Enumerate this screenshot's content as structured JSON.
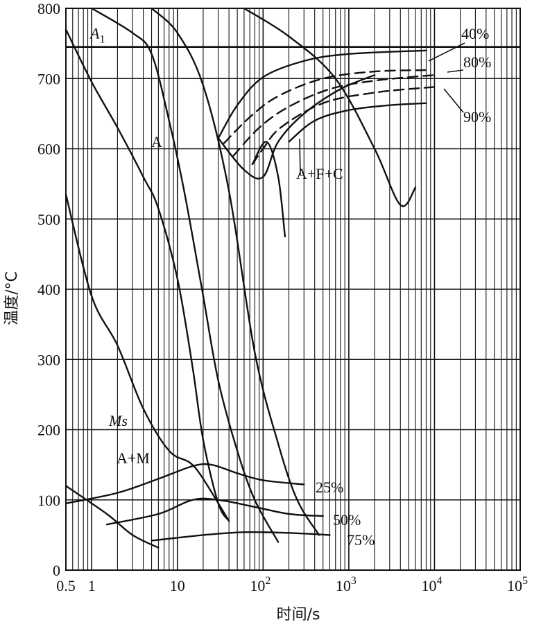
{
  "chart_data": {
    "type": "line",
    "title": "",
    "xlabel": "时间/s",
    "ylabel": "温度/°C",
    "x_scale": "log",
    "xlim": [
      0.5,
      100000
    ],
    "ylim": [
      0,
      800
    ],
    "x_tick_labels": [
      {
        "value": 0.5,
        "text": "0.5"
      },
      {
        "value": 1,
        "text": "1"
      },
      {
        "value": 10,
        "text": "10"
      },
      {
        "value": 100,
        "base": "10",
        "exp": "2"
      },
      {
        "value": 1000,
        "base": "10",
        "exp": "3"
      },
      {
        "value": 10000,
        "base": "10",
        "exp": "4"
      },
      {
        "value": 100000,
        "base": "10",
        "exp": "5"
      }
    ],
    "y_ticks": [
      0,
      100,
      200,
      300,
      400,
      500,
      600,
      700,
      800
    ],
    "grid": true,
    "reference_lines": [
      {
        "label_main": "A",
        "label_sub": "1",
        "y": 745
      }
    ],
    "series": [
      {
        "points": [
          [
            0.5,
            770
          ],
          [
            1,
            695
          ],
          [
            2,
            630
          ],
          [
            4,
            560
          ],
          [
            6,
            515
          ],
          [
            10,
            415
          ],
          [
            15,
            290
          ],
          [
            20,
            185
          ],
          [
            30,
            95
          ],
          [
            40,
            70
          ]
        ]
      },
      {
        "points": [
          [
            1,
            800
          ],
          [
            3,
            765
          ],
          [
            5,
            735
          ],
          [
            8,
            640
          ],
          [
            12,
            540
          ],
          [
            20,
            390
          ],
          [
            30,
            270
          ],
          [
            50,
            170
          ],
          [
            80,
            100
          ],
          [
            150,
            40
          ]
        ]
      },
      {
        "points": [
          [
            5,
            800
          ],
          [
            10,
            765
          ],
          [
            20,
            690
          ],
          [
            40,
            540
          ],
          [
            80,
            310
          ],
          [
            150,
            180
          ],
          [
            250,
            100
          ],
          [
            450,
            50
          ]
        ]
      },
      {
        "points": [
          [
            0.5,
            535
          ],
          [
            1,
            390
          ],
          [
            2,
            320
          ],
          [
            4,
            230
          ],
          [
            8,
            170
          ],
          [
            14,
            153
          ],
          [
            20,
            130
          ],
          [
            40,
            70
          ]
        ]
      },
      {
        "points": [
          [
            60,
            800
          ],
          [
            200,
            760
          ],
          [
            700,
            700
          ],
          [
            2000,
            600
          ],
          [
            4000,
            520
          ],
          [
            6000,
            545
          ]
        ]
      },
      {
        "points": [
          [
            30,
            615
          ],
          [
            60,
            570
          ],
          [
            100,
            560
          ],
          [
            150,
            610
          ],
          [
            300,
            650
          ],
          [
            800,
            685
          ],
          [
            2000,
            705
          ]
        ]
      },
      {
        "points": [
          [
            30,
            615
          ],
          [
            50,
            662
          ],
          [
            100,
            702
          ],
          [
            300,
            725
          ],
          [
            1000,
            735
          ],
          [
            8000,
            740
          ]
        ]
      },
      {
        "points": [
          [
            35,
            608
          ],
          [
            70,
            645
          ],
          [
            150,
            675
          ],
          [
            500,
            700
          ],
          [
            2000,
            710
          ],
          [
            8000,
            712
          ]
        ]
      },
      {
        "points": [
          [
            45,
            590
          ],
          [
            90,
            630
          ],
          [
            200,
            660
          ],
          [
            600,
            685
          ],
          [
            2000,
            697
          ],
          [
            10000,
            705
          ]
        ]
      },
      {
        "points": [
          [
            75,
            578
          ],
          [
            100,
            600
          ],
          [
            160,
            630
          ],
          [
            500,
            665
          ],
          [
            2000,
            680
          ],
          [
            10000,
            688
          ]
        ]
      },
      {
        "points": [
          [
            75,
            578
          ],
          [
            110,
            610
          ],
          [
            150,
            560
          ],
          [
            180,
            475
          ]
        ]
      },
      {
        "points": [
          [
            200,
            610
          ],
          [
            400,
            640
          ],
          [
            1000,
            655
          ],
          [
            3000,
            662
          ],
          [
            8000,
            665
          ]
        ]
      }
    ],
    "bottom_curves": [
      {
        "label": "25%",
        "points": [
          [
            0.5,
            95
          ],
          [
            2,
            110
          ],
          [
            6,
            130
          ],
          [
            15,
            148
          ],
          [
            25,
            150
          ],
          [
            50,
            138
          ],
          [
            100,
            128
          ],
          [
            300,
            122
          ]
        ]
      },
      {
        "label": "50%",
        "points": [
          [
            1.5,
            65
          ],
          [
            6,
            80
          ],
          [
            15,
            100
          ],
          [
            30,
            100
          ],
          [
            80,
            90
          ],
          [
            200,
            80
          ],
          [
            500,
            77
          ]
        ]
      },
      {
        "label": "75%",
        "points": [
          [
            5,
            42
          ],
          [
            20,
            50
          ],
          [
            60,
            54
          ],
          [
            200,
            53
          ],
          [
            600,
            50
          ]
        ]
      },
      {
        "label": "",
        "points": [
          [
            0.5,
            120
          ],
          [
            1.5,
            80
          ],
          [
            3,
            50
          ],
          [
            6,
            32
          ]
        ]
      }
    ],
    "annotations": [
      {
        "text": "A"
      },
      {
        "text": "A+F+C"
      },
      {
        "text": "40%"
      },
      {
        "text": "80%"
      },
      {
        "text": "90%"
      },
      {
        "text": "Ms"
      },
      {
        "text": "A+M"
      }
    ]
  }
}
